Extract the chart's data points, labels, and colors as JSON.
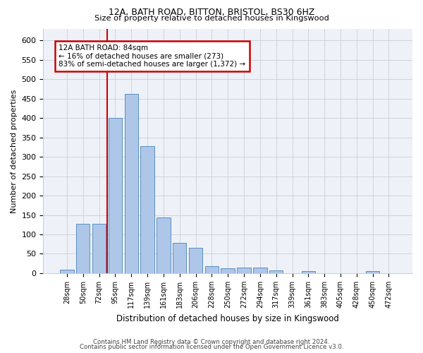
{
  "title1": "12A, BATH ROAD, BITTON, BRISTOL, BS30 6HZ",
  "title2": "Size of property relative to detached houses in Kingswood",
  "xlabel": "Distribution of detached houses by size in Kingswood",
  "ylabel": "Number of detached properties",
  "bar_labels": [
    "28sqm",
    "50sqm",
    "72sqm",
    "95sqm",
    "117sqm",
    "139sqm",
    "161sqm",
    "183sqm",
    "206sqm",
    "228sqm",
    "250sqm",
    "272sqm",
    "294sqm",
    "317sqm",
    "339sqm",
    "361sqm",
    "383sqm",
    "405sqm",
    "428sqm",
    "450sqm",
    "472sqm"
  ],
  "bar_values": [
    9,
    128,
    128,
    401,
    463,
    328,
    144,
    79,
    65,
    19,
    12,
    15,
    15,
    8,
    0,
    5,
    0,
    0,
    0,
    5,
    0
  ],
  "bar_color": "#aec6e8",
  "bar_edge_color": "#5a8fc2",
  "vline_x": 2.5,
  "vline_color": "#cc0000",
  "annotation_text": "12A BATH ROAD: 84sqm\n← 16% of detached houses are smaller (273)\n83% of semi-detached houses are larger (1,372) →",
  "annotation_box_color": "#cc0000",
  "ylim": [
    0,
    630
  ],
  "yticks": [
    0,
    50,
    100,
    150,
    200,
    250,
    300,
    350,
    400,
    450,
    500,
    550,
    600
  ],
  "footer1": "Contains HM Land Registry data © Crown copyright and database right 2024.",
  "footer2": "Contains public sector information licensed under the Open Government Licence v3.0.",
  "bg_color": "#ffffff",
  "plot_bg_color": "#eef2f8"
}
